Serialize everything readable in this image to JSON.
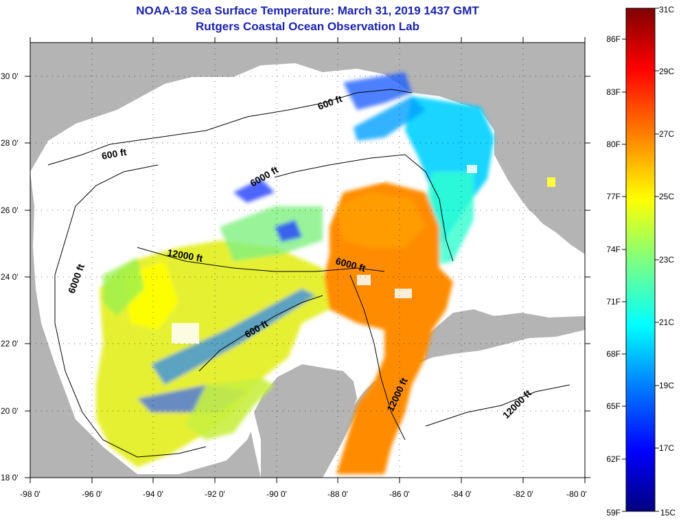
{
  "title": {
    "line1": "NOAA-18 Sea Surface Temperature:  March 31, 2019 1437 GMT",
    "line2": "Rutgers Coastal Ocean Observation Lab"
  },
  "map": {
    "lon_range": [
      -98,
      -80
    ],
    "lat_range": [
      18,
      31
    ],
    "x_ticks": [
      "-98 0'",
      "-96 0'",
      "-94 0'",
      "-92 0'",
      "-90 0'",
      "-88 0'",
      "-86 0'",
      "-84 0'",
      "-82 0'",
      "-80 0'"
    ],
    "y_ticks": [
      "18 0'",
      "20 0'",
      "22 0'",
      "24 0'",
      "26 0'",
      "28 0'",
      "30 0'"
    ],
    "grid": "dotted",
    "land_color": "#b4b4b4",
    "no_data_color": "#ffffff",
    "contours": [
      "600 ft",
      "6000 ft",
      "12000 ft",
      "6000 ft",
      "600 ft",
      "6000 ft",
      "600 ft",
      "12000 ft",
      "12000 ft"
    ]
  },
  "colorbar": {
    "celsius": [
      "31C",
      "29C",
      "27C",
      "25C",
      "23C",
      "21C",
      "19C",
      "17C",
      "15C"
    ],
    "fahrenheit": [
      "86F",
      "83F",
      "80F",
      "77F",
      "74F",
      "71F",
      "68F",
      "65F",
      "62F",
      "59F"
    ],
    "range_c": [
      15,
      31
    ],
    "colors": [
      "#00007f",
      "#0000ff",
      "#007fff",
      "#00ffff",
      "#7fff7f",
      "#ffff00",
      "#ff7f00",
      "#ff0000",
      "#7f0000"
    ]
  }
}
